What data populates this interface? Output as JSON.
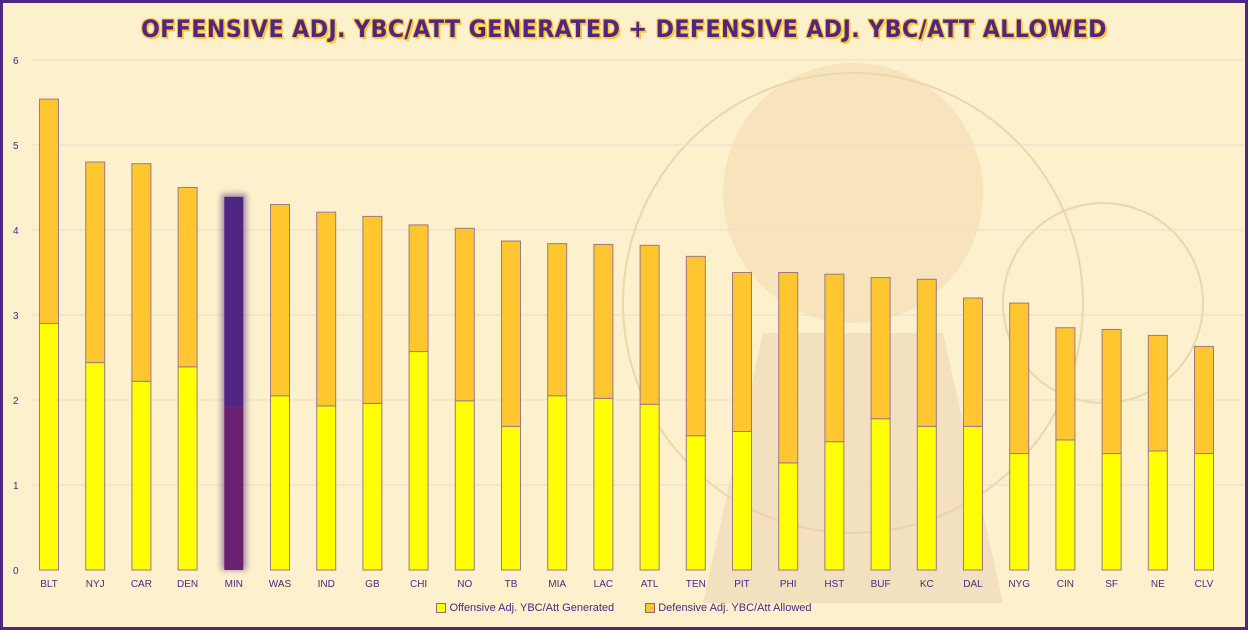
{
  "chart_data": {
    "type": "bar",
    "stacked": true,
    "title": "Offensive Adj. YBC/Att Generated + Defensive Adj. YBC/Att Allowed",
    "xlabel": "",
    "ylabel": "",
    "ylim": [
      0,
      6
    ],
    "yticks": [
      0,
      1,
      2,
      3,
      4,
      5,
      6
    ],
    "grid": true,
    "legend_position": "bottom",
    "categories": [
      "BLT",
      "NYJ",
      "CAR",
      "DEN",
      "MIN",
      "WAS",
      "IND",
      "GB",
      "CHI",
      "NO",
      "TB",
      "MIA",
      "LAC",
      "ATL",
      "TEN",
      "PIT",
      "PHI",
      "HST",
      "BUF",
      "KC",
      "DAL",
      "NYG",
      "CIN",
      "SF",
      "NE",
      "CLV"
    ],
    "highlight_category": "MIN",
    "series": [
      {
        "name": "Offensive Adj. YBC/Att Generated",
        "color": "#ffff00",
        "highlight_color": "#6b2070",
        "values": [
          2.9,
          2.44,
          2.22,
          2.39,
          1.92,
          2.05,
          1.93,
          1.96,
          2.57,
          1.99,
          1.69,
          2.05,
          2.02,
          1.95,
          1.58,
          1.63,
          1.26,
          1.51,
          1.78,
          1.69,
          1.69,
          1.37,
          1.53,
          1.37,
          1.4,
          1.37
        ]
      },
      {
        "name": "Defensive Adj. YBC/Att Allowed",
        "color": "#ffc62f",
        "highlight_color": "#4f2683",
        "values": [
          2.64,
          2.36,
          2.56,
          2.11,
          2.47,
          2.25,
          2.28,
          2.2,
          1.49,
          2.03,
          2.18,
          1.79,
          1.81,
          1.87,
          2.11,
          1.87,
          2.24,
          1.97,
          1.66,
          1.73,
          1.51,
          1.77,
          1.32,
          1.46,
          1.36,
          1.26
        ]
      }
    ]
  },
  "colors": {
    "frame": "#4f2683",
    "background": "#fdf0cc",
    "text": "#4f2683"
  }
}
